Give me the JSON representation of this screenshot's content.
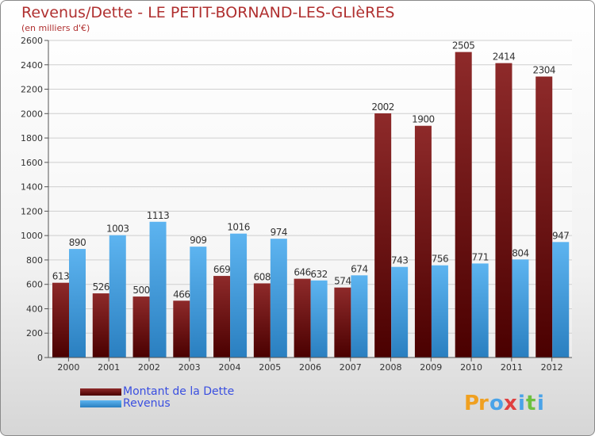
{
  "chart_data": {
    "type": "bar",
    "title": "Revenus/Dette - LE PETIT-BORNAND-LES-GLIèRES",
    "subtitle": "(en milliers d'€)",
    "categories": [
      "2000",
      "2001",
      "2002",
      "2003",
      "2004",
      "2005",
      "2006",
      "2007",
      "2008",
      "2009",
      "2010",
      "2011",
      "2012"
    ],
    "series": [
      {
        "name": "Montant de la Dette",
        "color": "#7a1414",
        "values": [
          613,
          526,
          500,
          466,
          669,
          608,
          646,
          574,
          2002,
          1900,
          2505,
          2414,
          2304
        ]
      },
      {
        "name": "Revenus",
        "color": "#4aa3e8",
        "values": [
          890,
          1003,
          1113,
          909,
          1016,
          974,
          632,
          674,
          743,
          756,
          771,
          804,
          947
        ]
      }
    ],
    "ylim": [
      0,
      2600
    ],
    "yticks": [
      0,
      200,
      400,
      600,
      800,
      1000,
      1200,
      1400,
      1600,
      1800,
      2000,
      2200,
      2400,
      2600
    ],
    "grid": true,
    "legend_position": "bottom-left"
  },
  "logo": {
    "text": "Proxiti",
    "letters": [
      "P",
      "r",
      "o",
      "x",
      "i",
      "t",
      "i"
    ]
  },
  "colors": {
    "title": "#b03030",
    "legend_text": "#3a4fe0"
  }
}
